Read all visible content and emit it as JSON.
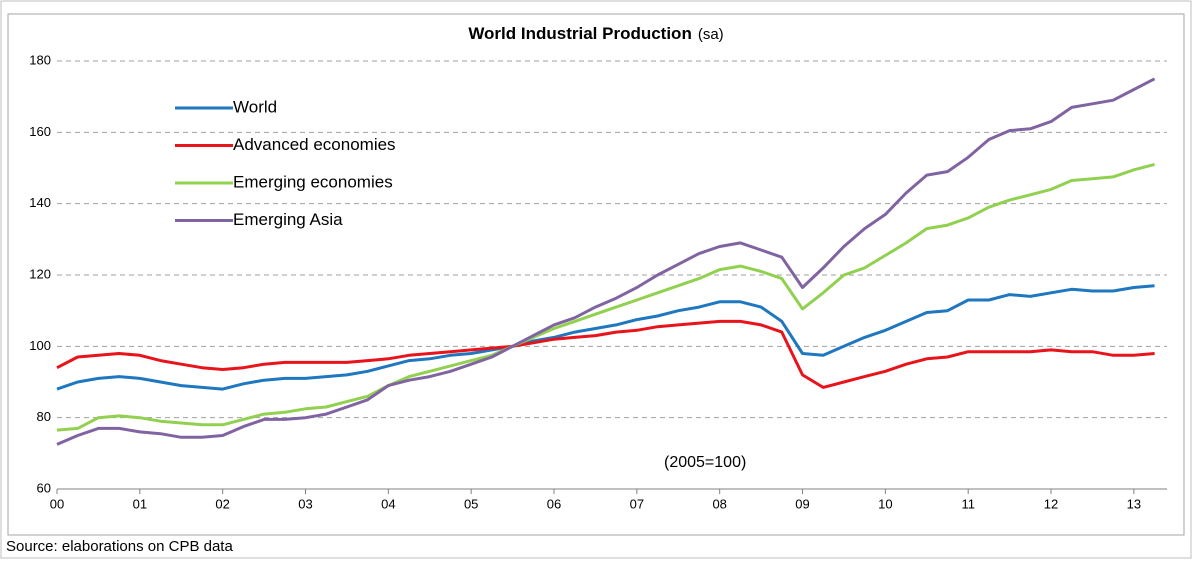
{
  "chart_data": {
    "type": "line",
    "title": "World Industrial Production",
    "subtitle": "(sa)",
    "annotation": "(2005=100)",
    "source": "Source: elaborations on CPB data",
    "x": [
      0,
      0.25,
      0.5,
      0.75,
      1,
      1.25,
      1.5,
      1.75,
      2,
      2.25,
      2.5,
      2.75,
      3,
      3.25,
      3.5,
      3.75,
      4,
      4.25,
      4.5,
      4.75,
      5,
      5.25,
      5.5,
      5.75,
      6,
      6.25,
      6.5,
      6.75,
      7,
      7.25,
      7.5,
      7.75,
      8,
      8.25,
      8.5,
      8.75,
      9,
      9.25,
      9.5,
      9.75,
      10,
      10.25,
      10.5,
      10.75,
      11,
      11.25,
      11.5,
      11.75,
      12,
      12.25,
      12.5,
      12.75,
      13,
      13.25
    ],
    "series": [
      {
        "name": "World",
        "color": "#1f77c0",
        "values": [
          88,
          90,
          91,
          91.5,
          91,
          90,
          89,
          88.5,
          88,
          89.5,
          90.5,
          91,
          91,
          91.5,
          92,
          93,
          94.5,
          96,
          96.5,
          97.5,
          98,
          99,
          100,
          101.5,
          102.5,
          104,
          105,
          106,
          107.5,
          108.5,
          110,
          111,
          112.5,
          112.5,
          111,
          107,
          98,
          97.5,
          100,
          102.5,
          104.5,
          107,
          109.5,
          110,
          113,
          113,
          114.5,
          114,
          115,
          116,
          115.5,
          115.5,
          116.5,
          117
        ]
      },
      {
        "name": "Advanced economies",
        "color": "#e8131b",
        "values": [
          94,
          97,
          97.5,
          98,
          97.5,
          96,
          95,
          94,
          93.5,
          94,
          95,
          95.5,
          95.5,
          95.5,
          95.5,
          96,
          96.5,
          97.5,
          98,
          98.5,
          99,
          99.5,
          100,
          101,
          102,
          102.5,
          103,
          104,
          104.5,
          105.5,
          106,
          106.5,
          107,
          107,
          106,
          104,
          92,
          88.5,
          90,
          91.5,
          93,
          95,
          96.5,
          97,
          98.5,
          98.5,
          98.5,
          98.5,
          99,
          98.5,
          98.5,
          97.5,
          97.5,
          98
        ]
      },
      {
        "name": "Emerging economies",
        "color": "#92d050",
        "values": [
          76.5,
          77,
          80,
          80.5,
          80,
          79,
          78.5,
          78,
          78,
          79.5,
          81,
          81.5,
          82.5,
          83,
          84.5,
          86,
          89,
          91.5,
          93,
          94.5,
          96,
          97.5,
          100,
          102.5,
          105,
          107,
          109,
          111,
          113,
          115,
          117,
          119,
          121.5,
          122.5,
          121,
          119,
          110.5,
          115,
          120,
          122,
          125.5,
          129,
          133,
          134,
          136,
          139,
          141,
          142.5,
          144,
          146.5,
          147,
          147.5,
          149.5,
          151
        ]
      },
      {
        "name": "Emerging Asia",
        "color": "#8064a2",
        "values": [
          72.5,
          75,
          77,
          77,
          76,
          75.5,
          74.5,
          74.5,
          75,
          77.5,
          79.5,
          79.5,
          80,
          81,
          83,
          85,
          89,
          90.5,
          91.5,
          93,
          95,
          97,
          100,
          103,
          106,
          108,
          111,
          113.5,
          116.5,
          120,
          123,
          126,
          128,
          129,
          127,
          125,
          116.5,
          122,
          128,
          133,
          137,
          143,
          148,
          149,
          153,
          158,
          160.5,
          161,
          163,
          167,
          168,
          169,
          172,
          175
        ]
      }
    ],
    "xlim": [
      0,
      13.4
    ],
    "xticks": [
      {
        "value": 0,
        "label": "00"
      },
      {
        "value": 1,
        "label": "01"
      },
      {
        "value": 2,
        "label": "02"
      },
      {
        "value": 3,
        "label": "03"
      },
      {
        "value": 4,
        "label": "04"
      },
      {
        "value": 5,
        "label": "05"
      },
      {
        "value": 6,
        "label": "06"
      },
      {
        "value": 7,
        "label": "07"
      },
      {
        "value": 8,
        "label": "08"
      },
      {
        "value": 9,
        "label": "09"
      },
      10,
      11,
      12,
      13
    ],
    "ylim": [
      60,
      180
    ],
    "yticks": [
      60,
      80,
      100,
      120,
      140,
      160,
      180
    ],
    "grid": true,
    "legend": "upper-left"
  }
}
